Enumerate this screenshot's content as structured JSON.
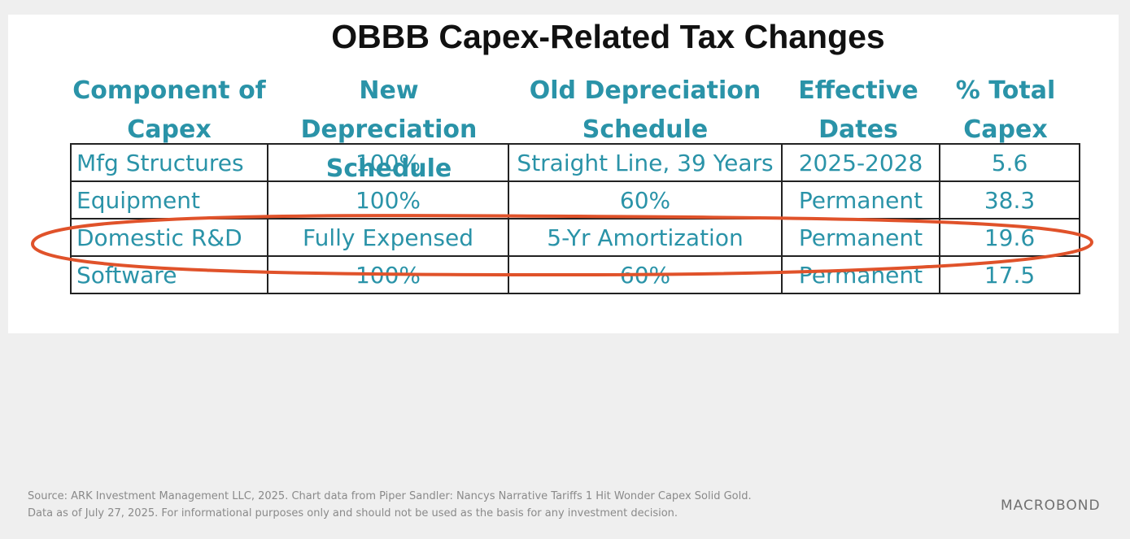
{
  "title": "OBBB Capex-Related Tax Changes",
  "headers": [
    [
      "Component of",
      "Capex"
    ],
    [
      "New Depreciation",
      "Schedule"
    ],
    [
      "Old Depreciation",
      "Schedule"
    ],
    [
      "Effective",
      "Dates"
    ],
    [
      "% Total",
      "Capex"
    ]
  ],
  "rows": [
    [
      "Mfg Structures",
      "100%",
      "Straight Line, 39 Years",
      "2025-2028",
      "5.6"
    ],
    [
      "Equipment",
      "100%",
      "60%",
      "Permanent",
      "38.3"
    ],
    [
      "Domestic R&D",
      "Fully Expensed",
      "5-Yr Amortization",
      "Permanent",
      "19.6"
    ],
    [
      "Software",
      "100%",
      "60%",
      "Permanent",
      "17.5"
    ]
  ],
  "highlight_row": 2,
  "colors": {
    "header_text": "#2a93a8",
    "highlight_oval": "#e0522a",
    "title_text": "#111111"
  },
  "footer": {
    "line1": "Source: ARK Investment Management LLC, 2025. Chart data from Piper Sandler: Nancys Narrative Tariffs 1 Hit Wonder Capex Solid Gold.",
    "line2": "Data as of July 27, 2025. For informational purposes only and should not be used as the basis for any investment decision."
  },
  "logo": "MACROBOND"
}
